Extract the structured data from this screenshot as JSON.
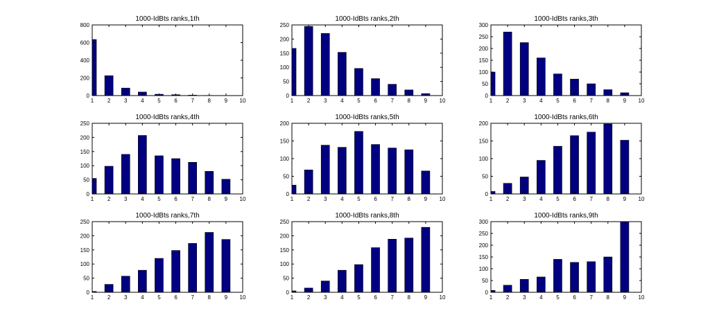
{
  "figure": {
    "background": "#ffffff",
    "bar_color": "#000080",
    "bar_edge_color": "#000000"
  },
  "chart_data": [
    {
      "type": "bar",
      "title": "1000-IdBts ranks,1th",
      "x": [
        1,
        2,
        3,
        4,
        5,
        6,
        7,
        8,
        9
      ],
      "values": [
        635,
        225,
        85,
        40,
        15,
        10,
        5,
        2,
        1
      ],
      "xlim": [
        1,
        10
      ],
      "ylim": [
        0,
        800
      ],
      "xticks": [
        1,
        2,
        3,
        4,
        5,
        6,
        7,
        8,
        9,
        10
      ],
      "yticks": [
        0,
        200,
        400,
        600,
        800
      ],
      "grid": false
    },
    {
      "type": "bar",
      "title": "1000-IdBts ranks,2th",
      "x": [
        1,
        2,
        3,
        4,
        5,
        6,
        7,
        8,
        9
      ],
      "values": [
        167,
        245,
        220,
        153,
        96,
        60,
        40,
        20,
        7
      ],
      "xlim": [
        1,
        10
      ],
      "ylim": [
        0,
        250
      ],
      "xticks": [
        1,
        2,
        3,
        4,
        5,
        6,
        7,
        8,
        9,
        10
      ],
      "yticks": [
        0,
        50,
        100,
        150,
        200,
        250
      ],
      "grid": false
    },
    {
      "type": "bar",
      "title": "1000-IdBts ranks,3th",
      "x": [
        1,
        2,
        3,
        4,
        5,
        6,
        7,
        8,
        9
      ],
      "values": [
        100,
        270,
        225,
        160,
        92,
        70,
        50,
        25,
        12
      ],
      "xlim": [
        1,
        10
      ],
      "ylim": [
        0,
        300
      ],
      "xticks": [
        1,
        2,
        3,
        4,
        5,
        6,
        7,
        8,
        9,
        10
      ],
      "yticks": [
        0,
        50,
        100,
        150,
        200,
        250,
        300
      ],
      "grid": false
    },
    {
      "type": "bar",
      "title": "1000-IdBts ranks,4th",
      "x": [
        1,
        2,
        3,
        4,
        5,
        6,
        7,
        8,
        9
      ],
      "values": [
        55,
        98,
        140,
        207,
        135,
        125,
        112,
        80,
        52
      ],
      "xlim": [
        1,
        10
      ],
      "ylim": [
        0,
        250
      ],
      "xticks": [
        1,
        2,
        3,
        4,
        5,
        6,
        7,
        8,
        9,
        10
      ],
      "yticks": [
        0,
        50,
        100,
        150,
        200,
        250
      ],
      "grid": false
    },
    {
      "type": "bar",
      "title": "1000-IdBts ranks,5th",
      "x": [
        1,
        2,
        3,
        4,
        5,
        6,
        7,
        8,
        9
      ],
      "values": [
        25,
        68,
        138,
        132,
        177,
        140,
        130,
        125,
        65
      ],
      "xlim": [
        1,
        10
      ],
      "ylim": [
        0,
        200
      ],
      "xticks": [
        1,
        2,
        3,
        4,
        5,
        6,
        7,
        8,
        9,
        10
      ],
      "yticks": [
        0,
        50,
        100,
        150,
        200
      ],
      "grid": false
    },
    {
      "type": "bar",
      "title": "1000-IdBts ranks,6th",
      "x": [
        1,
        2,
        3,
        4,
        5,
        6,
        7,
        8,
        9
      ],
      "values": [
        7,
        30,
        48,
        95,
        135,
        165,
        175,
        198,
        152
      ],
      "xlim": [
        1,
        10
      ],
      "ylim": [
        0,
        200
      ],
      "xticks": [
        1,
        2,
        3,
        4,
        5,
        6,
        7,
        8,
        9,
        10
      ],
      "yticks": [
        0,
        50,
        100,
        150,
        200
      ],
      "grid": false
    },
    {
      "type": "bar",
      "title": "1000-IdBts ranks,7th",
      "x": [
        1,
        2,
        3,
        4,
        5,
        6,
        7,
        8,
        9
      ],
      "values": [
        3,
        28,
        57,
        78,
        120,
        148,
        173,
        212,
        187
      ],
      "xlim": [
        1,
        10
      ],
      "ylim": [
        0,
        250
      ],
      "xticks": [
        1,
        2,
        3,
        4,
        5,
        6,
        7,
        8,
        9,
        10
      ],
      "yticks": [
        0,
        50,
        100,
        150,
        200,
        250
      ],
      "grid": false
    },
    {
      "type": "bar",
      "title": "1000-IdBts ranks,8th",
      "x": [
        1,
        2,
        3,
        4,
        5,
        6,
        7,
        8,
        9
      ],
      "values": [
        5,
        15,
        40,
        78,
        98,
        158,
        188,
        192,
        230
      ],
      "xlim": [
        1,
        10
      ],
      "ylim": [
        0,
        250
      ],
      "xticks": [
        1,
        2,
        3,
        4,
        5,
        6,
        7,
        8,
        9,
        10
      ],
      "yticks": [
        0,
        50,
        100,
        150,
        200,
        250
      ],
      "grid": false
    },
    {
      "type": "bar",
      "title": "1000-IdBts ranks,9th",
      "x": [
        1,
        2,
        3,
        4,
        5,
        6,
        7,
        8,
        9
      ],
      "values": [
        8,
        30,
        55,
        65,
        140,
        127,
        130,
        150,
        300
      ],
      "xlim": [
        1,
        10
      ],
      "ylim": [
        0,
        300
      ],
      "xticks": [
        1,
        2,
        3,
        4,
        5,
        6,
        7,
        8,
        9,
        10
      ],
      "yticks": [
        0,
        50,
        100,
        150,
        200,
        250,
        300
      ],
      "grid": false
    }
  ]
}
